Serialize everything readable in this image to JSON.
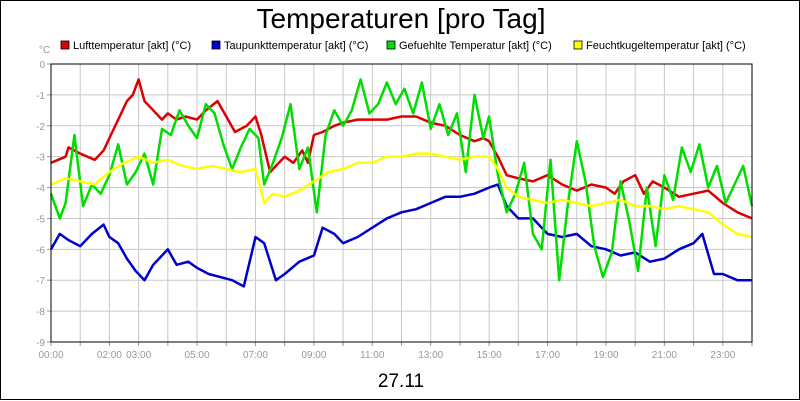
{
  "chart_data": {
    "type": "line",
    "title": "Temperaturen [pro Tag]",
    "date_label": "27.11",
    "y_unit": "°C",
    "ylim": [
      -9,
      0
    ],
    "y_ticks": [
      0,
      -1,
      -2,
      -3,
      -4,
      -5,
      -6,
      -7,
      -8,
      -9
    ],
    "xlim": [
      0,
      24
    ],
    "x_ticks": [
      {
        "label": "00:00",
        "value": 0
      },
      {
        "label": "02:00",
        "value": 2
      },
      {
        "label": "03:00",
        "value": 3
      },
      {
        "label": "05:00",
        "value": 5
      },
      {
        "label": "07:00",
        "value": 7
      },
      {
        "label": "09:00",
        "value": 9
      },
      {
        "label": "11:00",
        "value": 11
      },
      {
        "label": "13:00",
        "value": 13
      },
      {
        "label": "15:00",
        "value": 15
      },
      {
        "label": "17:00",
        "value": 17
      },
      {
        "label": "19:00",
        "value": 19
      },
      {
        "label": "21:00",
        "value": 21
      },
      {
        "label": "23:00",
        "value": 23
      }
    ],
    "grid": true,
    "legend_position": "top",
    "series": [
      {
        "name": "Lufttemperatur [akt] (°C)",
        "color": "#dd0000",
        "points": [
          [
            0,
            -3.2
          ],
          [
            0.5,
            -3.0
          ],
          [
            0.6,
            -2.7
          ],
          [
            1.0,
            -2.9
          ],
          [
            1.5,
            -3.1
          ],
          [
            1.8,
            -2.8
          ],
          [
            2.0,
            -2.4
          ],
          [
            2.3,
            -1.8
          ],
          [
            2.6,
            -1.2
          ],
          [
            2.8,
            -1.0
          ],
          [
            3.0,
            -0.5
          ],
          [
            3.2,
            -1.2
          ],
          [
            3.5,
            -1.5
          ],
          [
            3.8,
            -1.8
          ],
          [
            4.0,
            -1.6
          ],
          [
            4.3,
            -1.8
          ],
          [
            4.6,
            -1.7
          ],
          [
            5.0,
            -1.8
          ],
          [
            5.3,
            -1.5
          ],
          [
            5.7,
            -1.2
          ],
          [
            6.0,
            -1.7
          ],
          [
            6.3,
            -2.2
          ],
          [
            6.7,
            -2.0
          ],
          [
            7.0,
            -1.7
          ],
          [
            7.2,
            -2.3
          ],
          [
            7.5,
            -3.5
          ],
          [
            7.8,
            -3.2
          ],
          [
            8.0,
            -3.0
          ],
          [
            8.3,
            -3.2
          ],
          [
            8.6,
            -2.8
          ],
          [
            8.8,
            -3.2
          ],
          [
            9.0,
            -2.3
          ],
          [
            9.3,
            -2.2
          ],
          [
            9.7,
            -2.0
          ],
          [
            10.0,
            -1.9
          ],
          [
            10.5,
            -1.8
          ],
          [
            11.0,
            -1.8
          ],
          [
            11.5,
            -1.8
          ],
          [
            12.0,
            -1.7
          ],
          [
            12.5,
            -1.7
          ],
          [
            13.0,
            -1.9
          ],
          [
            13.5,
            -2.0
          ],
          [
            14.0,
            -2.3
          ],
          [
            14.5,
            -2.5
          ],
          [
            14.8,
            -2.4
          ],
          [
            15.0,
            -2.5
          ],
          [
            15.3,
            -3.0
          ],
          [
            15.6,
            -3.6
          ],
          [
            16.0,
            -3.7
          ],
          [
            16.5,
            -3.8
          ],
          [
            17.0,
            -3.6
          ],
          [
            17.5,
            -3.9
          ],
          [
            18.0,
            -4.1
          ],
          [
            18.5,
            -3.9
          ],
          [
            19.0,
            -4.0
          ],
          [
            19.3,
            -4.2
          ],
          [
            19.6,
            -3.8
          ],
          [
            20.0,
            -3.6
          ],
          [
            20.3,
            -4.2
          ],
          [
            20.6,
            -3.8
          ],
          [
            21.0,
            -4.0
          ],
          [
            21.5,
            -4.3
          ],
          [
            22.0,
            -4.2
          ],
          [
            22.5,
            -4.1
          ],
          [
            23.0,
            -4.5
          ],
          [
            23.5,
            -4.8
          ],
          [
            24.0,
            -5.0
          ]
        ]
      },
      {
        "name": "Taupunkttemperatur [akt] (°C)",
        "color": "#0000cc",
        "points": [
          [
            0,
            -6.0
          ],
          [
            0.3,
            -5.5
          ],
          [
            0.6,
            -5.7
          ],
          [
            1.0,
            -5.9
          ],
          [
            1.4,
            -5.5
          ],
          [
            1.8,
            -5.2
          ],
          [
            2.0,
            -5.6
          ],
          [
            2.3,
            -5.8
          ],
          [
            2.6,
            -6.3
          ],
          [
            2.9,
            -6.7
          ],
          [
            3.2,
            -7.0
          ],
          [
            3.5,
            -6.5
          ],
          [
            3.8,
            -6.2
          ],
          [
            4.0,
            -6.0
          ],
          [
            4.3,
            -6.5
          ],
          [
            4.7,
            -6.4
          ],
          [
            5.0,
            -6.6
          ],
          [
            5.4,
            -6.8
          ],
          [
            5.8,
            -6.9
          ],
          [
            6.2,
            -7.0
          ],
          [
            6.6,
            -7.2
          ],
          [
            7.0,
            -5.6
          ],
          [
            7.3,
            -5.8
          ],
          [
            7.7,
            -7.0
          ],
          [
            8.0,
            -6.8
          ],
          [
            8.5,
            -6.4
          ],
          [
            9.0,
            -6.2
          ],
          [
            9.3,
            -5.3
          ],
          [
            9.7,
            -5.5
          ],
          [
            10.0,
            -5.8
          ],
          [
            10.5,
            -5.6
          ],
          [
            11.0,
            -5.3
          ],
          [
            11.5,
            -5.0
          ],
          [
            12.0,
            -4.8
          ],
          [
            12.5,
            -4.7
          ],
          [
            13.0,
            -4.5
          ],
          [
            13.5,
            -4.3
          ],
          [
            14.0,
            -4.3
          ],
          [
            14.5,
            -4.2
          ],
          [
            15.0,
            -4.0
          ],
          [
            15.3,
            -3.9
          ],
          [
            15.6,
            -4.6
          ],
          [
            16.0,
            -5.0
          ],
          [
            16.5,
            -5.0
          ],
          [
            17.0,
            -5.5
          ],
          [
            17.5,
            -5.6
          ],
          [
            18.0,
            -5.5
          ],
          [
            18.5,
            -5.9
          ],
          [
            19.0,
            -6.0
          ],
          [
            19.5,
            -6.2
          ],
          [
            20.0,
            -6.1
          ],
          [
            20.5,
            -6.4
          ],
          [
            21.0,
            -6.3
          ],
          [
            21.5,
            -6.0
          ],
          [
            22.0,
            -5.8
          ],
          [
            22.3,
            -5.5
          ],
          [
            22.7,
            -6.8
          ],
          [
            23.0,
            -6.8
          ],
          [
            23.5,
            -7.0
          ],
          [
            24.0,
            -7.0
          ]
        ]
      },
      {
        "name": "Gefuehlte Temperatur [akt] (°C)",
        "color": "#00dd00",
        "points": [
          [
            0,
            -4.2
          ],
          [
            0.3,
            -5.0
          ],
          [
            0.5,
            -4.5
          ],
          [
            0.8,
            -2.3
          ],
          [
            1.1,
            -4.6
          ],
          [
            1.4,
            -3.9
          ],
          [
            1.7,
            -4.2
          ],
          [
            2.0,
            -3.6
          ],
          [
            2.3,
            -2.6
          ],
          [
            2.6,
            -3.9
          ],
          [
            2.9,
            -3.5
          ],
          [
            3.2,
            -2.9
          ],
          [
            3.5,
            -3.9
          ],
          [
            3.8,
            -2.1
          ],
          [
            4.1,
            -2.3
          ],
          [
            4.4,
            -1.5
          ],
          [
            4.7,
            -2.0
          ],
          [
            5.0,
            -2.4
          ],
          [
            5.3,
            -1.3
          ],
          [
            5.6,
            -1.6
          ],
          [
            5.9,
            -2.6
          ],
          [
            6.2,
            -3.4
          ],
          [
            6.5,
            -2.7
          ],
          [
            6.8,
            -2.1
          ],
          [
            7.1,
            -2.4
          ],
          [
            7.3,
            -3.9
          ],
          [
            7.6,
            -3.2
          ],
          [
            7.9,
            -2.4
          ],
          [
            8.2,
            -1.3
          ],
          [
            8.5,
            -3.4
          ],
          [
            8.8,
            -2.7
          ],
          [
            9.1,
            -4.8
          ],
          [
            9.4,
            -2.3
          ],
          [
            9.7,
            -1.5
          ],
          [
            10.0,
            -2.0
          ],
          [
            10.3,
            -1.5
          ],
          [
            10.6,
            -0.5
          ],
          [
            10.9,
            -1.6
          ],
          [
            11.2,
            -1.3
          ],
          [
            11.5,
            -0.6
          ],
          [
            11.8,
            -1.3
          ],
          [
            12.1,
            -0.8
          ],
          [
            12.4,
            -1.6
          ],
          [
            12.7,
            -0.6
          ],
          [
            13.0,
            -2.1
          ],
          [
            13.3,
            -1.3
          ],
          [
            13.6,
            -2.3
          ],
          [
            13.9,
            -1.6
          ],
          [
            14.2,
            -3.5
          ],
          [
            14.5,
            -1.0
          ],
          [
            14.8,
            -2.4
          ],
          [
            15.0,
            -1.7
          ],
          [
            15.3,
            -3.6
          ],
          [
            15.6,
            -4.8
          ],
          [
            15.9,
            -4.2
          ],
          [
            16.2,
            -3.2
          ],
          [
            16.5,
            -5.5
          ],
          [
            16.8,
            -6.0
          ],
          [
            17.1,
            -3.1
          ],
          [
            17.4,
            -7.0
          ],
          [
            17.7,
            -4.5
          ],
          [
            18.0,
            -2.5
          ],
          [
            18.3,
            -3.8
          ],
          [
            18.6,
            -5.9
          ],
          [
            18.9,
            -6.9
          ],
          [
            19.2,
            -6.1
          ],
          [
            19.5,
            -3.8
          ],
          [
            19.8,
            -5.1
          ],
          [
            20.1,
            -6.7
          ],
          [
            20.4,
            -4.0
          ],
          [
            20.7,
            -5.9
          ],
          [
            21.0,
            -3.6
          ],
          [
            21.3,
            -4.4
          ],
          [
            21.6,
            -2.7
          ],
          [
            21.9,
            -3.5
          ],
          [
            22.2,
            -2.6
          ],
          [
            22.5,
            -4.0
          ],
          [
            22.8,
            -3.3
          ],
          [
            23.1,
            -4.5
          ],
          [
            23.4,
            -3.9
          ],
          [
            23.7,
            -3.3
          ],
          [
            24.0,
            -4.6
          ]
        ]
      },
      {
        "name": "Feuchtkugeltemperatur [akt] (°C)",
        "color": "#ffff00",
        "points": [
          [
            0,
            -3.9
          ],
          [
            0.5,
            -3.7
          ],
          [
            1.0,
            -3.8
          ],
          [
            1.5,
            -3.9
          ],
          [
            2.0,
            -3.5
          ],
          [
            2.5,
            -3.2
          ],
          [
            3.0,
            -3.0
          ],
          [
            3.5,
            -3.2
          ],
          [
            4.0,
            -3.1
          ],
          [
            4.5,
            -3.3
          ],
          [
            5.0,
            -3.4
          ],
          [
            5.5,
            -3.3
          ],
          [
            6.0,
            -3.4
          ],
          [
            6.5,
            -3.5
          ],
          [
            7.0,
            -3.4
          ],
          [
            7.3,
            -4.5
          ],
          [
            7.6,
            -4.2
          ],
          [
            8.0,
            -4.3
          ],
          [
            8.5,
            -4.1
          ],
          [
            9.0,
            -3.8
          ],
          [
            9.5,
            -3.5
          ],
          [
            10.0,
            -3.4
          ],
          [
            10.5,
            -3.2
          ],
          [
            11.0,
            -3.2
          ],
          [
            11.5,
            -3.0
          ],
          [
            12.0,
            -3.0
          ],
          [
            12.5,
            -2.9
          ],
          [
            13.0,
            -2.9
          ],
          [
            13.5,
            -3.0
          ],
          [
            14.0,
            -3.1
          ],
          [
            14.5,
            -3.0
          ],
          [
            15.0,
            -3.0
          ],
          [
            15.3,
            -3.4
          ],
          [
            15.6,
            -4.0
          ],
          [
            16.0,
            -4.3
          ],
          [
            16.5,
            -4.4
          ],
          [
            17.0,
            -4.5
          ],
          [
            17.5,
            -4.4
          ],
          [
            18.0,
            -4.5
          ],
          [
            18.5,
            -4.6
          ],
          [
            19.0,
            -4.5
          ],
          [
            19.5,
            -4.4
          ],
          [
            20.0,
            -4.6
          ],
          [
            20.5,
            -4.6
          ],
          [
            21.0,
            -4.7
          ],
          [
            21.5,
            -4.6
          ],
          [
            22.0,
            -4.7
          ],
          [
            22.5,
            -4.8
          ],
          [
            23.0,
            -5.2
          ],
          [
            23.5,
            -5.5
          ],
          [
            24.0,
            -5.6
          ]
        ]
      }
    ]
  }
}
